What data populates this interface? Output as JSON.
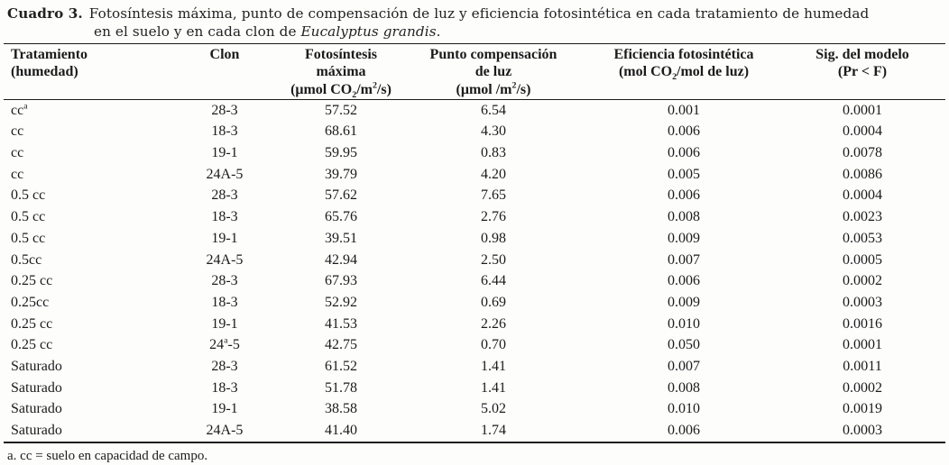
{
  "page": {
    "background": "#fdfdfc",
    "text_color": "#1c1c1c",
    "rule_color": "#1a1a1a"
  },
  "caption": {
    "label": "Cuadro 3.",
    "line1": "Fotosíntesis máxima, punto de compensación de luz y eficiencia fotosintética en cada tratamiento de humedad",
    "line2_prefix": "en el suelo y en cada clon de ",
    "species_italic": "Eucalyptus grandis",
    "line2_suffix": "."
  },
  "table": {
    "columns": [
      {
        "id": "tratamiento",
        "align": "left",
        "lines": [
          "Tratamiento",
          "(humedad)"
        ]
      },
      {
        "id": "clon",
        "align": "center",
        "lines": [
          "Clon"
        ]
      },
      {
        "id": "fotosintesis-maxima",
        "align": "center",
        "lines": [
          "Fotosíntesis máxima",
          "(μmol CO_2/m^2/s)"
        ]
      },
      {
        "id": "punto-compensacion",
        "align": "center",
        "lines": [
          "Punto compensación",
          "de luz",
          "(μmol /m^2/s)"
        ]
      },
      {
        "id": "eficiencia",
        "align": "center",
        "lines": [
          "Eficiencia fotosintética",
          "(mol CO_2/mol de luz)"
        ]
      },
      {
        "id": "sig-modelo",
        "align": "center",
        "lines": [
          "Sig. del modelo",
          "(Pr < F)"
        ]
      }
    ],
    "rows": [
      [
        "cc^a",
        "28-3",
        "57.52",
        "6.54",
        "0.001",
        "0.0001"
      ],
      [
        "cc",
        "18-3",
        "68.61",
        "4.30",
        "0.006",
        "0.0004"
      ],
      [
        "cc",
        "19-1",
        "59.95",
        "0.83",
        "0.006",
        "0.0078"
      ],
      [
        "cc",
        "24A-5",
        "39.79",
        "4.20",
        "0.005",
        "0.0086"
      ],
      [
        "0.5 cc",
        "28-3",
        "57.62",
        "7.65",
        "0.006",
        "0.0004"
      ],
      [
        "0.5 cc",
        "18-3",
        "65.76",
        "2.76",
        "0.008",
        "0.0023"
      ],
      [
        "0.5 cc",
        "19-1",
        "39.51",
        "0.98",
        "0.009",
        "0.0053"
      ],
      [
        "0.5cc",
        "24A-5",
        "42.94",
        "2.50",
        "0.007",
        "0.0005"
      ],
      [
        "0.25 cc",
        "28-3",
        "67.93",
        "6.44",
        "0.006",
        "0.0002"
      ],
      [
        "0.25cc",
        "18-3",
        "52.92",
        "0.69",
        "0.009",
        "0.0003"
      ],
      [
        "0.25 cc",
        "19-1",
        "41.53",
        "2.26",
        "0.010",
        "0.0016"
      ],
      [
        "0.25 cc",
        "24^a-5",
        "42.75",
        "0.70",
        "0.050",
        "0.0001"
      ],
      [
        "Saturado",
        "28-3",
        "61.52",
        "1.41",
        "0.007",
        "0.0011"
      ],
      [
        "Saturado",
        "18-3",
        "51.78",
        "1.41",
        "0.008",
        "0.0002"
      ],
      [
        "Saturado",
        "19-1",
        "38.58",
        "5.02",
        "0.010",
        "0.0019"
      ],
      [
        "Saturado",
        "24A-5",
        "41.40",
        "1.74",
        "0.006",
        "0.0003"
      ]
    ]
  },
  "footnote": "a. cc = suelo en capacidad de campo."
}
